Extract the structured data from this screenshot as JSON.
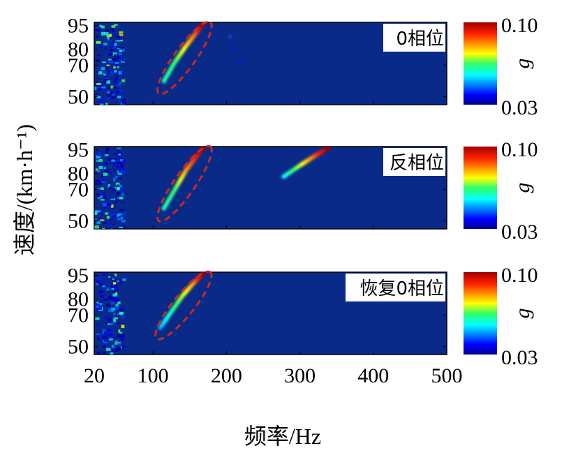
{
  "chart_data": {
    "type": "heatmap",
    "xlabel": "频率/Hz",
    "ylabel": "速度/(km·h⁻¹)",
    "x_ticks": [
      20,
      100,
      200,
      300,
      400,
      500
    ],
    "xlim": [
      20,
      500
    ],
    "y_ticks": [
      50,
      70,
      80,
      95
    ],
    "ylim": [
      45,
      97
    ],
    "colorbar": {
      "variable": "g",
      "min": 0.03,
      "max": 0.1,
      "min_label": "0.03",
      "max_label": "0.10",
      "colormap": "jet"
    },
    "panels": [
      {
        "label": "0相位",
        "features": [
          {
            "kind": "ridge",
            "points": [
              [
                115,
                60,
                0.06
              ],
              [
                130,
                72,
                0.065
              ],
              [
                145,
                82,
                0.075
              ],
              [
                158,
                90,
                0.085
              ],
              [
                168,
                96,
                0.1
              ]
            ]
          },
          {
            "kind": "spot",
            "points": [
              [
                205,
                88,
                0.045
              ],
              [
                210,
                80,
                0.04
              ],
              [
                218,
                72,
                0.04
              ]
            ]
          }
        ],
        "ellipse": {
          "x_range": [
            108,
            178
          ],
          "y_range": [
            52,
            97
          ]
        }
      },
      {
        "label": "反相位",
        "features": [
          {
            "kind": "ridge",
            "points": [
              [
                115,
                58,
                0.06
              ],
              [
                130,
                70,
                0.065
              ],
              [
                145,
                82,
                0.08
              ],
              [
                158,
                90,
                0.09
              ],
              [
                168,
                96,
                0.1
              ]
            ]
          },
          {
            "kind": "ridge",
            "points": [
              [
                278,
                78,
                0.055
              ],
              [
                300,
                85,
                0.07
              ],
              [
                320,
                91,
                0.085
              ],
              [
                338,
                96,
                0.1
              ]
            ]
          }
        ],
        "ellipse": {
          "x_range": [
            108,
            178
          ],
          "y_range": [
            50,
            97
          ]
        }
      },
      {
        "label": "恢复0相位",
        "features": [
          {
            "kind": "ridge",
            "points": [
              [
                110,
                62,
                0.05
              ],
              [
                125,
                72,
                0.06
              ],
              [
                140,
                82,
                0.07
              ],
              [
                155,
                90,
                0.08
              ],
              [
                168,
                96,
                0.1
              ]
            ]
          }
        ],
        "ellipse": {
          "x_range": [
            105,
            178
          ],
          "y_range": [
            55,
            97
          ]
        }
      }
    ]
  }
}
